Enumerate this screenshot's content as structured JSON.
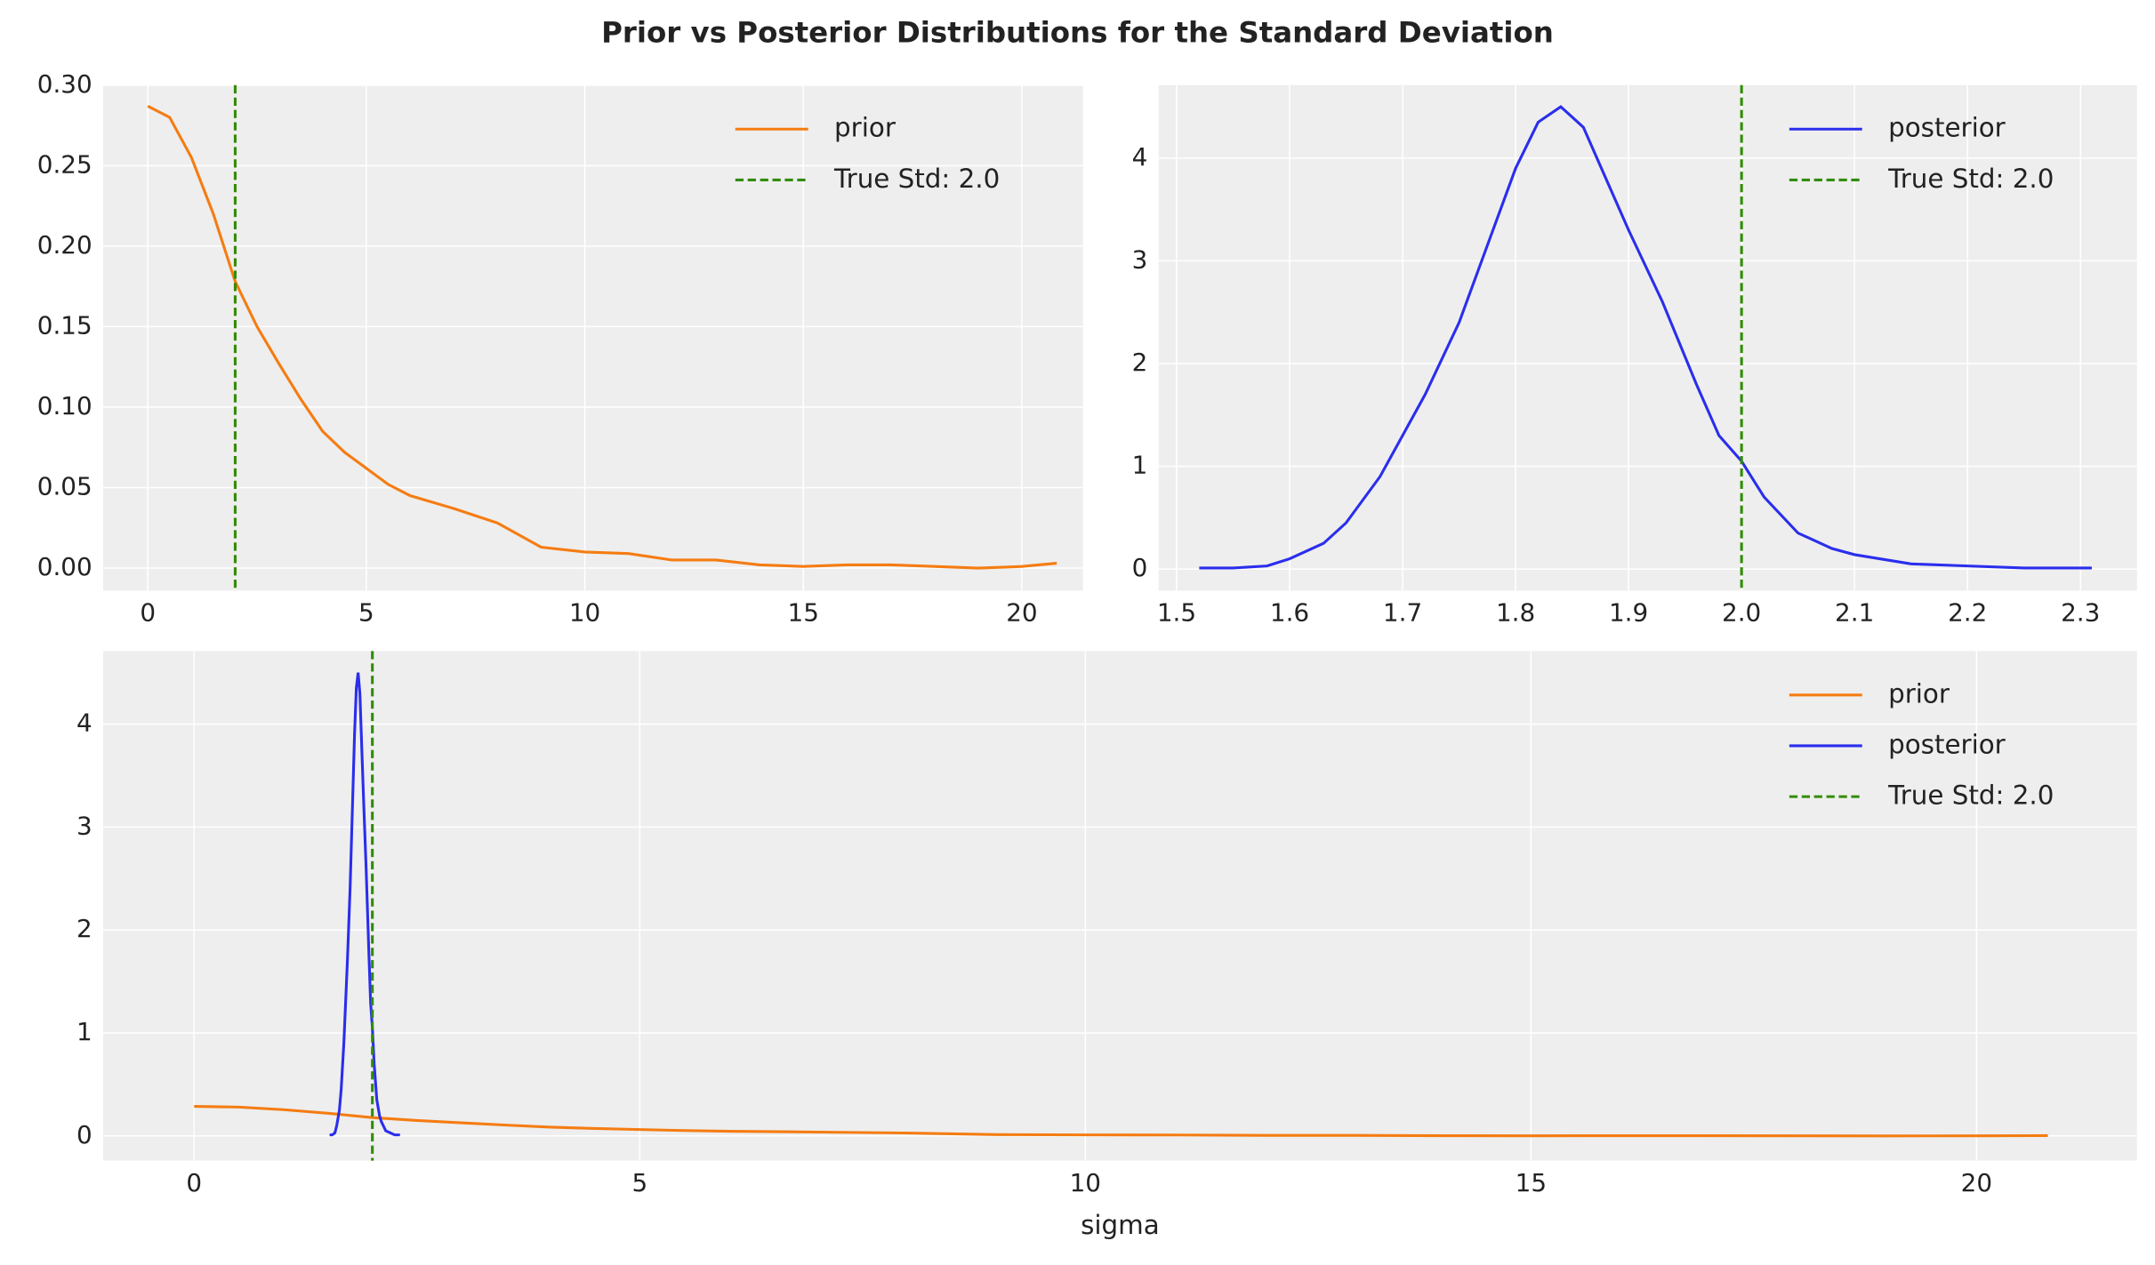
{
  "title": "Prior vs Posterior Distributions for the Standard Deviation",
  "chart_data": [
    {
      "type": "line",
      "legend": "upper right",
      "grid": true,
      "xlim": [
        -1.02,
        21.4
      ],
      "ylim": [
        -0.014,
        0.3
      ],
      "xticks": [
        0,
        5,
        10,
        15,
        20
      ],
      "yticks": [
        {
          "value": 0,
          "label": "0.00"
        },
        {
          "value": 0.05,
          "label": "0.05"
        },
        {
          "value": 0.1,
          "label": "0.10"
        },
        {
          "value": 0.15,
          "label": "0.15"
        },
        {
          "value": 0.2,
          "label": "0.20"
        },
        {
          "value": 0.25,
          "label": "0.25"
        },
        {
          "value": 0.3,
          "label": "0.30"
        }
      ],
      "series": [
        {
          "name": "prior",
          "color": "#f57c12",
          "x": [
            0,
            0.5,
            1,
            1.5,
            2,
            2.5,
            3,
            3.5,
            4,
            4.5,
            5,
            5.5,
            6,
            7,
            8,
            9,
            10,
            11,
            12,
            13,
            14,
            15,
            16,
            17,
            18,
            19,
            20,
            20.8
          ],
          "values": [
            0.287,
            0.28,
            0.255,
            0.22,
            0.178,
            0.15,
            0.127,
            0.105,
            0.085,
            0.072,
            0.062,
            0.052,
            0.045,
            0.037,
            0.028,
            0.013,
            0.01,
            0.009,
            0.005,
            0.005,
            0.002,
            0.001,
            0.002,
            0.002,
            0.001,
            0,
            0.001,
            0.003
          ]
        }
      ],
      "vlines": [
        {
          "name": "True Std: 2.0",
          "value": 2.0,
          "color": "#328c06",
          "linestyle": "dashed"
        }
      ]
    },
    {
      "type": "line",
      "legend": "upper right",
      "grid": true,
      "xlim": [
        1.484,
        2.35
      ],
      "ylim": [
        -0.21,
        4.71
      ],
      "xticks": [
        1.5,
        1.6,
        1.7,
        1.8,
        1.9,
        {
          "value": 2.0,
          "label": "2.0"
        },
        2.1,
        2.2,
        2.3
      ],
      "yticks": [
        0,
        1,
        2,
        3,
        4
      ],
      "series": [
        {
          "name": "posterior",
          "color": "#2a2eec",
          "x": [
            1.52,
            1.55,
            1.58,
            1.6,
            1.63,
            1.65,
            1.68,
            1.7,
            1.72,
            1.75,
            1.78,
            1.8,
            1.82,
            1.84,
            1.86,
            1.88,
            1.9,
            1.93,
            1.96,
            1.98,
            2.0,
            2.02,
            2.05,
            2.08,
            2.1,
            2.15,
            2.2,
            2.25,
            2.31
          ],
          "values": [
            0.01,
            0.01,
            0.03,
            0.1,
            0.25,
            0.45,
            0.9,
            1.3,
            1.7,
            2.4,
            3.3,
            3.9,
            4.35,
            4.5,
            4.3,
            3.8,
            3.3,
            2.6,
            1.8,
            1.3,
            1.05,
            0.7,
            0.35,
            0.2,
            0.14,
            0.05,
            0.03,
            0.01,
            0.01
          ]
        }
      ],
      "vlines": [
        {
          "name": "True Std: 2.0",
          "value": 2.0,
          "color": "#328c06",
          "linestyle": "dashed"
        }
      ]
    },
    {
      "type": "line",
      "legend": "upper right",
      "grid": true,
      "xlabel": "sigma",
      "xlim": [
        -1.02,
        21.8
      ],
      "ylim": [
        -0.24,
        4.71
      ],
      "xticks": [
        0,
        5,
        10,
        15,
        20
      ],
      "yticks": [
        0,
        1,
        2,
        3,
        4
      ],
      "series": [
        {
          "name": "prior",
          "color": "#f57c12",
          "x": [
            0,
            0.5,
            1,
            1.5,
            2,
            2.5,
            3,
            3.5,
            4,
            4.5,
            5,
            5.5,
            6,
            7,
            8,
            9,
            10,
            11,
            12,
            13,
            14,
            15,
            16,
            17,
            18,
            19,
            20,
            20.8
          ],
          "values": [
            0.287,
            0.28,
            0.255,
            0.22,
            0.178,
            0.15,
            0.127,
            0.105,
            0.085,
            0.072,
            0.062,
            0.052,
            0.045,
            0.037,
            0.028,
            0.013,
            0.01,
            0.009,
            0.005,
            0.005,
            0.002,
            0.001,
            0.002,
            0.002,
            0.001,
            0,
            0.001,
            0.003
          ]
        },
        {
          "name": "posterior",
          "color": "#2a2eec",
          "x": [
            1.52,
            1.55,
            1.58,
            1.6,
            1.63,
            1.65,
            1.68,
            1.7,
            1.72,
            1.75,
            1.78,
            1.8,
            1.82,
            1.84,
            1.86,
            1.88,
            1.9,
            1.93,
            1.96,
            1.98,
            2.0,
            2.02,
            2.05,
            2.08,
            2.1,
            2.15,
            2.2,
            2.25,
            2.31
          ],
          "values": [
            0.01,
            0.01,
            0.03,
            0.1,
            0.25,
            0.45,
            0.9,
            1.3,
            1.7,
            2.4,
            3.3,
            3.9,
            4.35,
            4.5,
            4.3,
            3.8,
            3.3,
            2.6,
            1.8,
            1.3,
            1.05,
            0.7,
            0.35,
            0.2,
            0.14,
            0.05,
            0.03,
            0.01,
            0.01
          ]
        }
      ],
      "vlines": [
        {
          "name": "True Std: 2.0",
          "value": 2.0,
          "color": "#328c06",
          "linestyle": "dashed"
        }
      ]
    }
  ]
}
